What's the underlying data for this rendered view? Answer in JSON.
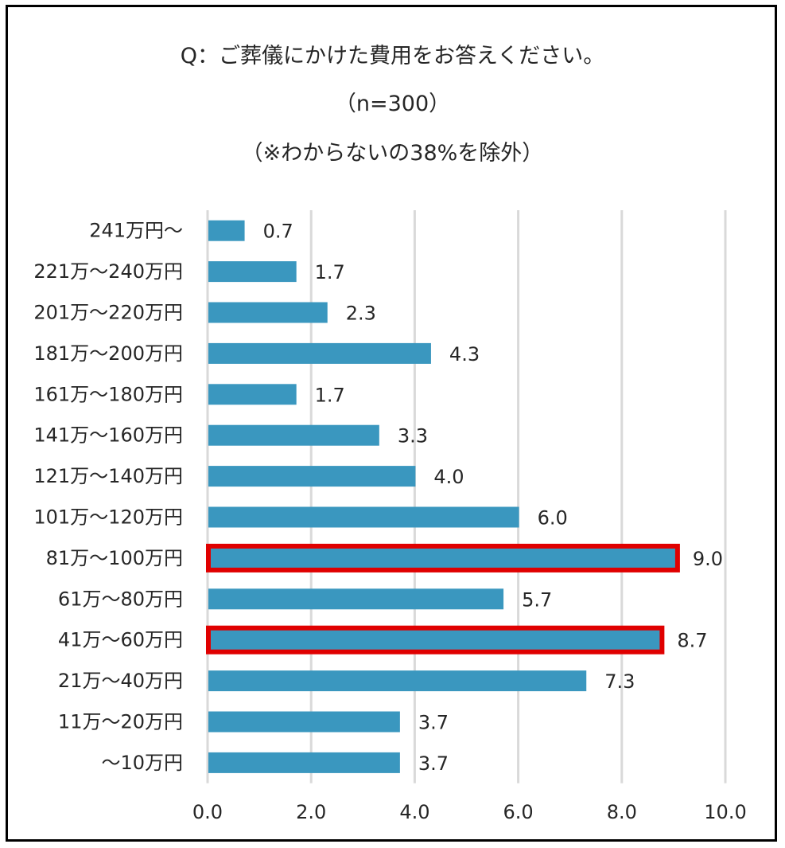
{
  "chart_data": {
    "type": "bar",
    "orientation": "horizontal",
    "title": "Q：ご葬儀にかけた費用をお答えください。",
    "subtitle": "（n=300）",
    "note": "（※わからないの38%を除外）",
    "categories": [
      "241万円～",
      "221万～240万円",
      "201万～220万円",
      "181万～200万円",
      "161万～180万円",
      "141万～160万円",
      "121万～140万円",
      "101万～120万円",
      "81万～100万円",
      "61万～80万円",
      "41万～60万円",
      "21万～40万円",
      "11万～20万円",
      "～10万円"
    ],
    "values": [
      0.7,
      1.7,
      2.3,
      4.3,
      1.7,
      3.3,
      4.0,
      6.0,
      9.0,
      5.7,
      8.7,
      7.3,
      3.7,
      3.7
    ],
    "value_labels": [
      "0.7",
      "1.7",
      "2.3",
      "4.3",
      "1.7",
      "3.3",
      "4.0",
      "6.0",
      "9.0",
      "5.7",
      "8.7",
      "7.3",
      "3.7",
      "3.7"
    ],
    "highlighted": [
      "81万～100万円",
      "41万～60万円"
    ],
    "xlim": [
      0,
      10
    ],
    "x_ticks": [
      "0.0",
      "2.0",
      "4.0",
      "6.0",
      "8.0",
      "10.0"
    ],
    "xlabel": "",
    "ylabel": "",
    "grid": true,
    "bar_color": "#3A97BF",
    "highlight_color": "#E00000",
    "grid_color": "#D9D9D9"
  }
}
